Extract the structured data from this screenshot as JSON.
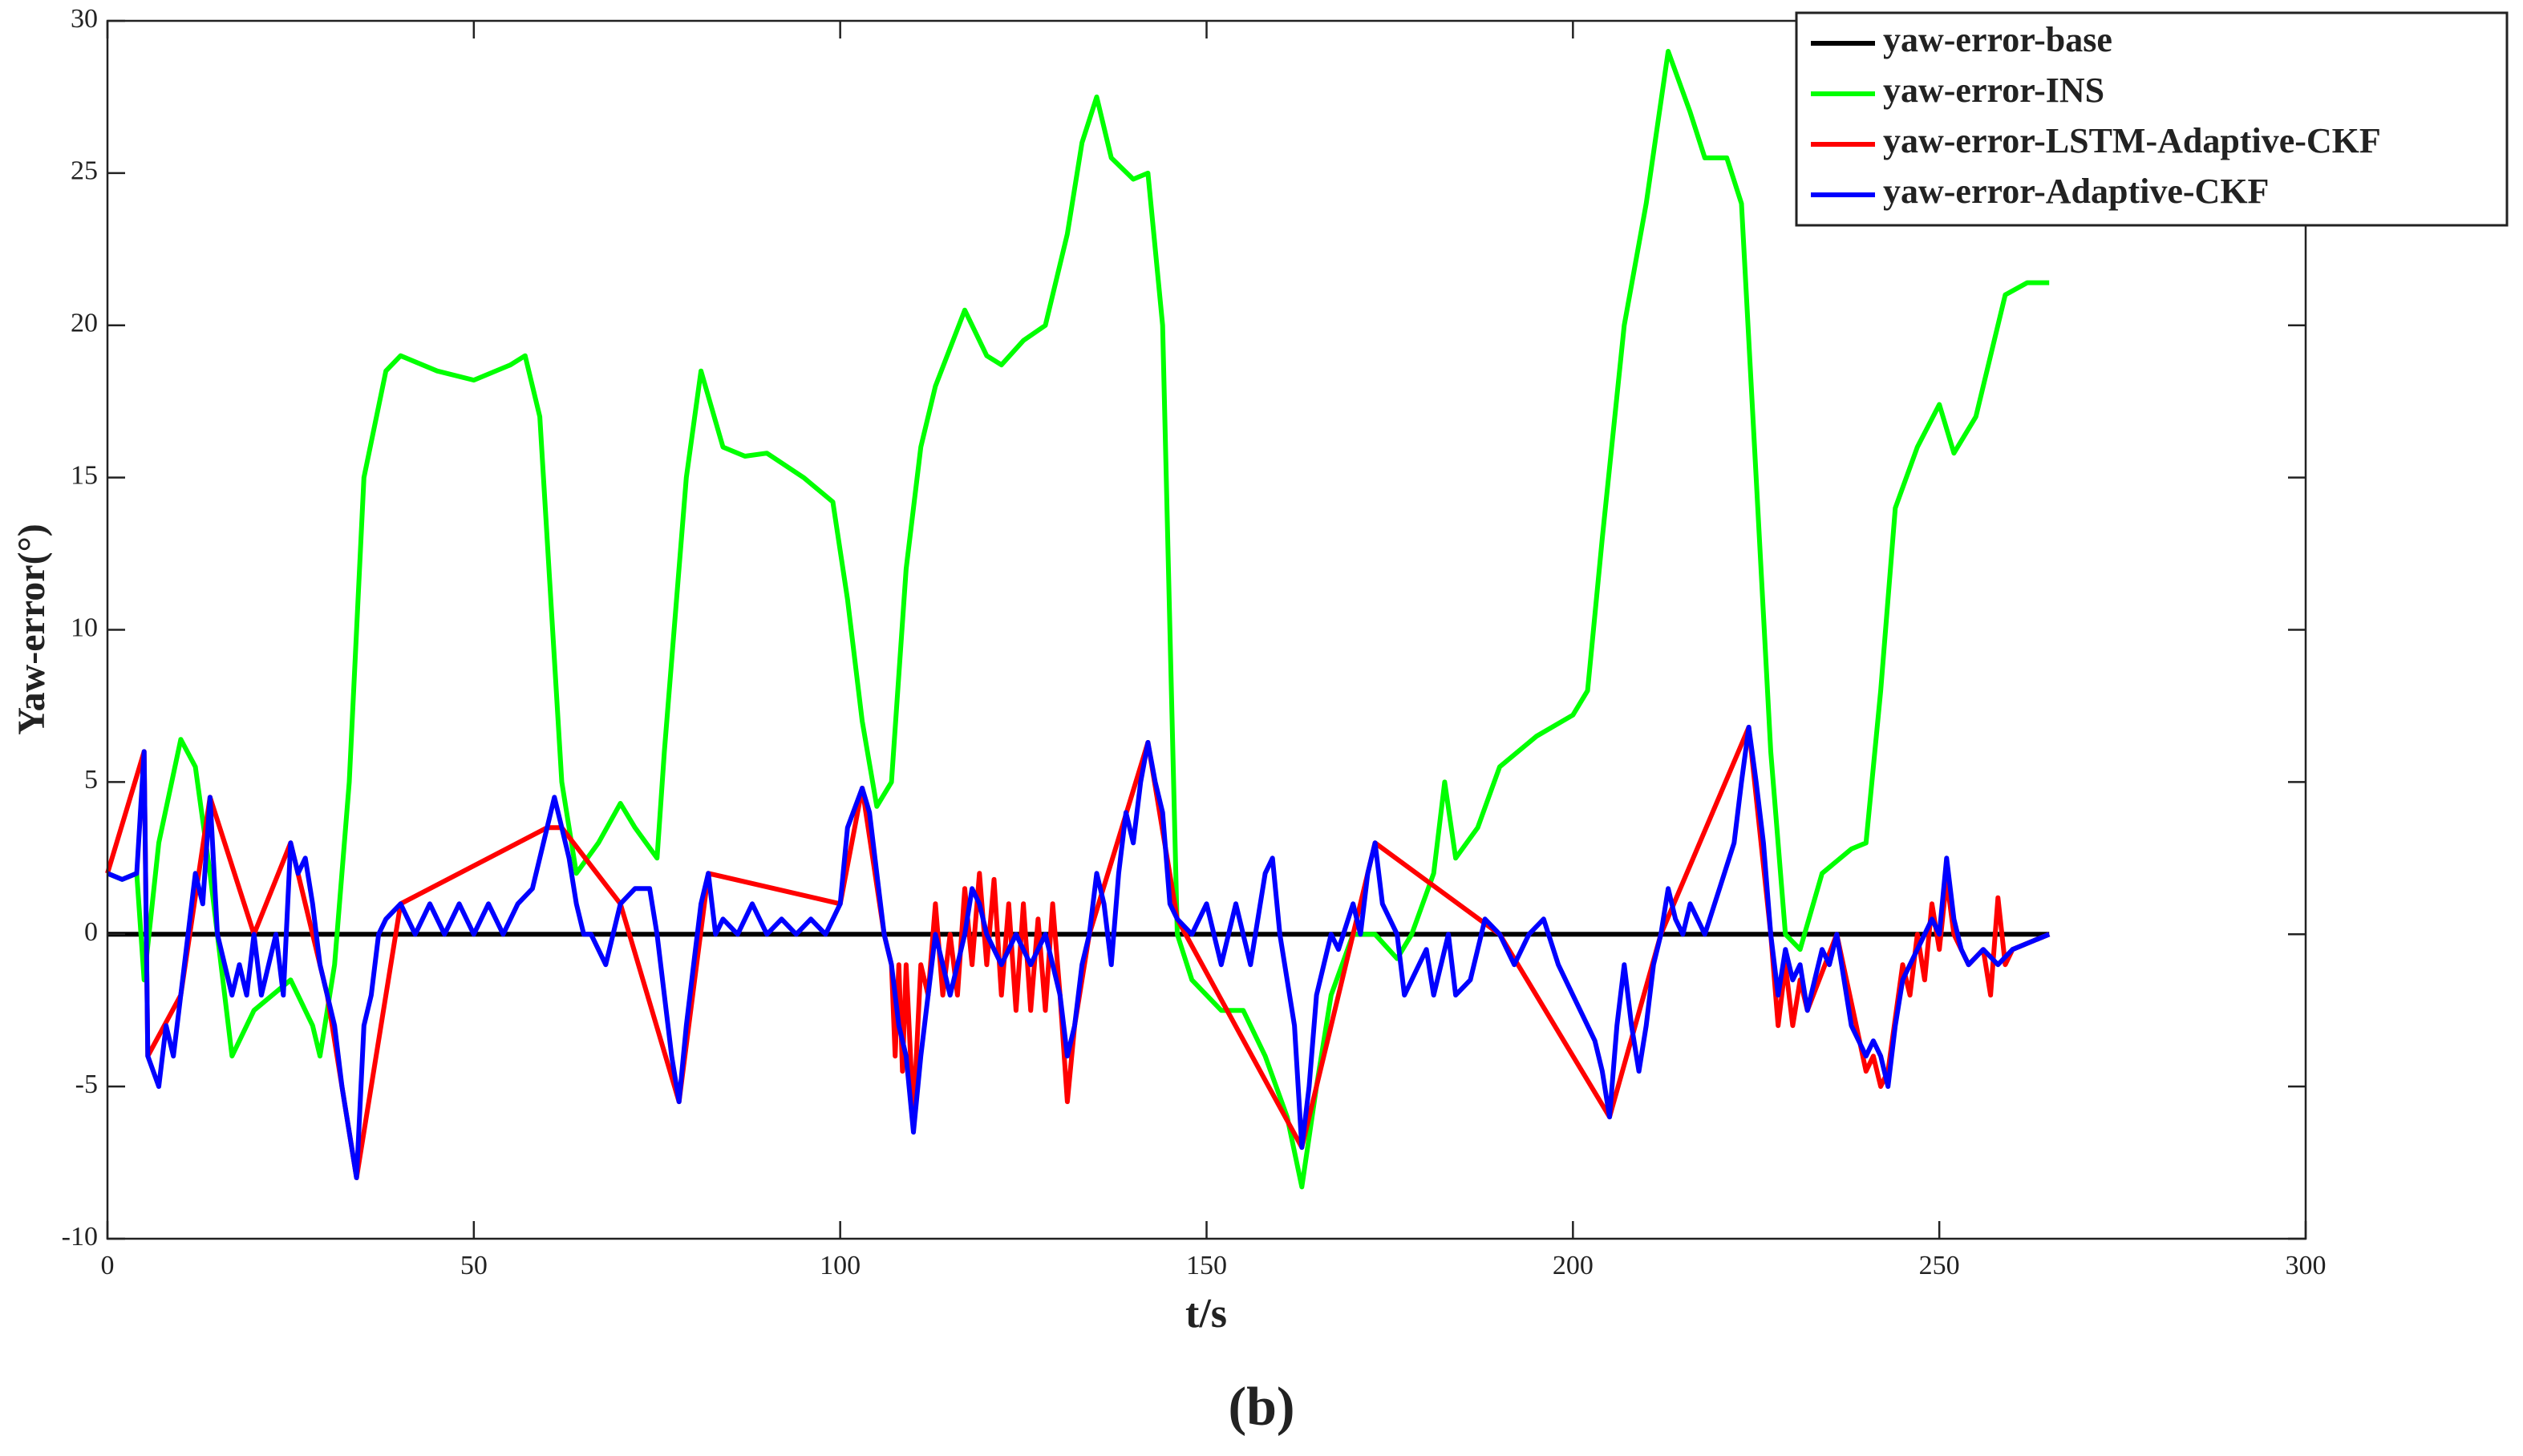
{
  "chart_data": {
    "type": "line",
    "xlabel": "t/s",
    "ylabel": "Yaw-error(°)",
    "caption": "(b)",
    "xlim": [
      0,
      300
    ],
    "xticks": [
      0,
      50,
      100,
      150,
      200,
      250,
      300
    ],
    "ylim": [
      -10,
      30
    ],
    "yticks": [
      -10,
      -5,
      0,
      5,
      10,
      15,
      20,
      25,
      30
    ],
    "legend": "upper right",
    "series": [
      {
        "name": "yaw-error-base",
        "color": "#000000",
        "x": [
          0,
          265
        ],
        "values": [
          0,
          0
        ]
      },
      {
        "name": "yaw-error-INS",
        "color": "#00ff00",
        "x": [
          0,
          2,
          4,
          5,
          7,
          10,
          12,
          14,
          17,
          20,
          25,
          28,
          29,
          31,
          33,
          35,
          38,
          40,
          45,
          50,
          55,
          57,
          59,
          62,
          64,
          67,
          70,
          72,
          75,
          76,
          79,
          81,
          84,
          87,
          90,
          95,
          99,
          101,
          103,
          105,
          107,
          109,
          111,
          113,
          117,
          120,
          122,
          125,
          128,
          131,
          133,
          135,
          137,
          140,
          142,
          144,
          145,
          146,
          148,
          152,
          155,
          158,
          161,
          163,
          165,
          167,
          170,
          173,
          176,
          178,
          181,
          182.5,
          184,
          187,
          190,
          195,
          200,
          202,
          204,
          207,
          210,
          213,
          216,
          218,
          221,
          223,
          225,
          227,
          229,
          231,
          234,
          238,
          240,
          242,
          244,
          247,
          250,
          252,
          255,
          257,
          259,
          262,
          265
        ],
        "values": [
          2,
          1.8,
          2,
          -1.5,
          3,
          6.4,
          5.5,
          2,
          -4,
          -2.5,
          -1.5,
          -3,
          -4,
          -1,
          5,
          15,
          18.5,
          19,
          18.5,
          18.2,
          18.7,
          19,
          17,
          5,
          2,
          3,
          4.3,
          3.5,
          2.5,
          6,
          15,
          18.5,
          16,
          15.7,
          15.8,
          15,
          14.2,
          11,
          7,
          4.2,
          5,
          12,
          16,
          18,
          20.5,
          19,
          18.7,
          19.5,
          20,
          23,
          26,
          27.5,
          25.5,
          24.8,
          25,
          20,
          10,
          0,
          -1.5,
          -2.5,
          -2.5,
          -4,
          -6,
          -8.3,
          -5,
          -2,
          0,
          0,
          -0.8,
          0,
          2,
          5,
          2.5,
          3.5,
          5.5,
          6.5,
          7.2,
          8,
          13,
          20,
          24,
          29,
          27,
          25.5,
          25.5,
          24,
          15,
          6,
          0,
          -0.5,
          2,
          2.8,
          3,
          8,
          14,
          16,
          17.4,
          15.8,
          17,
          19,
          21,
          21.4,
          21.4
        ]
      },
      {
        "name": "yaw-error-LSTM-Adaptive-CKF",
        "color": "#ff0000",
        "x": [
          0,
          5,
          5.5,
          10,
          14,
          20,
          25,
          30,
          34,
          40,
          60,
          62,
          70,
          78,
          82,
          100,
          103,
          106,
          107,
          107.5,
          108,
          108.5,
          109,
          110,
          111,
          112,
          113,
          114,
          115,
          116,
          117,
          118,
          119,
          120,
          121,
          122,
          123,
          124,
          125,
          126,
          127,
          128,
          129,
          130,
          131,
          132,
          134,
          142,
          146,
          163,
          173,
          190,
          205,
          212,
          224,
          227,
          228,
          229,
          230,
          231,
          232,
          236,
          240,
          241,
          242,
          243,
          245,
          246,
          247,
          248,
          249,
          250,
          251,
          252,
          254,
          256,
          257,
          258,
          259,
          260,
          265
        ],
        "values": [
          2,
          6,
          -4,
          -2,
          4.5,
          0,
          3,
          -2,
          -8,
          1,
          3.5,
          3.5,
          1,
          -5.5,
          2,
          1,
          4.8,
          0,
          -1,
          -4,
          -1,
          -4.5,
          -1,
          -6,
          -1,
          -2,
          1,
          -2,
          0,
          -2,
          1.5,
          -1,
          2,
          -1,
          1.8,
          -2,
          1,
          -2.5,
          1,
          -2.5,
          0.5,
          -2.5,
          1,
          -2,
          -5.5,
          -3,
          0,
          6.3,
          0.5,
          -7,
          3,
          0,
          -6,
          0,
          6.8,
          0,
          -3,
          -1,
          -3,
          -1.5,
          -2.5,
          0,
          -4.5,
          -4,
          -5,
          -4.5,
          -1,
          -2,
          0,
          -1.5,
          1,
          -0.5,
          1.8,
          0,
          -1,
          -0.5,
          -2,
          1.2,
          -1,
          -0.5,
          0
        ]
      },
      {
        "name": "yaw-error-Adaptive-CKF",
        "color": "#0000ff",
        "x": [
          0,
          2,
          4,
          5,
          5.5,
          7,
          8,
          9,
          10,
          11,
          12,
          13,
          14,
          15,
          16,
          17,
          18,
          19,
          20,
          21,
          22,
          23,
          24,
          25,
          26,
          27,
          28,
          29,
          30,
          31,
          32,
          34,
          35,
          36,
          37,
          38,
          40,
          42,
          44,
          46,
          48,
          50,
          52,
          54,
          56,
          58,
          60,
          61,
          62,
          63,
          64,
          65,
          66,
          68,
          70,
          72,
          74,
          75,
          76,
          77,
          78,
          79,
          80,
          81,
          82,
          83,
          84,
          86,
          88,
          90,
          92,
          94,
          96,
          98,
          100,
          101,
          103,
          104,
          105,
          106,
          107,
          108,
          109,
          110,
          111,
          112,
          113,
          114,
          115,
          116,
          117,
          118,
          119,
          120,
          122,
          124,
          126,
          128,
          130,
          131,
          132,
          133,
          134,
          135,
          136,
          137,
          138,
          139,
          140,
          141,
          142,
          143,
          144,
          145,
          146,
          148,
          150,
          152,
          154,
          156,
          158,
          159,
          160,
          162,
          163,
          164,
          165,
          166,
          167,
          168,
          170,
          171,
          172,
          173,
          174,
          176,
          177,
          178,
          180,
          181,
          182,
          183,
          184,
          186,
          188,
          190,
          192,
          194,
          196,
          198,
          200,
          202,
          203,
          204,
          205,
          206,
          207,
          208,
          209,
          210,
          211,
          212,
          213,
          214,
          215,
          216,
          218,
          220,
          222,
          223,
          224,
          225,
          226,
          227,
          228,
          229,
          230,
          231,
          232,
          233,
          234,
          235,
          236,
          237,
          238,
          239,
          240,
          241,
          242,
          243,
          244,
          245,
          246,
          247,
          248,
          249,
          250,
          251,
          252,
          253,
          254,
          256,
          258,
          260,
          262,
          265
        ],
        "values": [
          2,
          1.8,
          2,
          6,
          -4,
          -5,
          -3,
          -4,
          -2,
          0,
          2,
          1,
          4.5,
          0,
          -1,
          -2,
          -1,
          -2,
          0,
          -2,
          -1,
          0,
          -2,
          3,
          2,
          2.5,
          1,
          -1,
          -2,
          -3,
          -5,
          -8,
          -3,
          -2,
          0,
          0.5,
          1,
          0,
          1,
          0,
          1,
          0,
          1,
          0,
          1,
          1.5,
          3.5,
          4.5,
          3.5,
          2.5,
          1,
          0,
          0,
          -1,
          1,
          1.5,
          1.5,
          0,
          -2,
          -4,
          -5.5,
          -3,
          -1,
          1,
          2,
          0,
          0.5,
          0,
          1,
          0,
          0.5,
          0,
          0.5,
          0,
          1,
          3.5,
          4.8,
          4,
          2,
          0,
          -1,
          -3,
          -4,
          -6.5,
          -4,
          -2,
          0,
          -1,
          -2,
          -1,
          0,
          1.5,
          1,
          0,
          -1,
          0,
          -1,
          0,
          -2,
          -4,
          -3,
          -1,
          0,
          2,
          1,
          -1,
          2,
          4,
          3,
          5,
          6.3,
          5,
          4,
          1,
          0.5,
          0,
          1,
          -1,
          1,
          -1,
          2,
          2.5,
          0,
          -3,
          -7,
          -5,
          -2,
          -1,
          0,
          -0.5,
          1,
          0,
          2,
          3,
          1,
          0,
          -2,
          -1.5,
          -0.5,
          -2,
          -1,
          0,
          -2,
          -1.5,
          0.5,
          0,
          -1,
          0,
          0.5,
          -1,
          -2,
          -3,
          -3.5,
          -4.5,
          -6,
          -3,
          -1,
          -3,
          -4.5,
          -3,
          -1,
          0,
          1.5,
          0.5,
          0,
          1,
          0,
          1.5,
          3,
          5,
          6.8,
          5,
          3,
          0,
          -2,
          -0.5,
          -1.5,
          -1,
          -2.5,
          -1.5,
          -0.5,
          -1,
          0,
          -1.5,
          -3,
          -3.5,
          -4,
          -3.5,
          -4,
          -5,
          -3,
          -1.5,
          -1,
          -0.5,
          0,
          0.5,
          0,
          2.5,
          0.5,
          -0.5,
          -1,
          -0.5,
          -1,
          -0.5,
          -0.3,
          0
        ]
      }
    ]
  }
}
